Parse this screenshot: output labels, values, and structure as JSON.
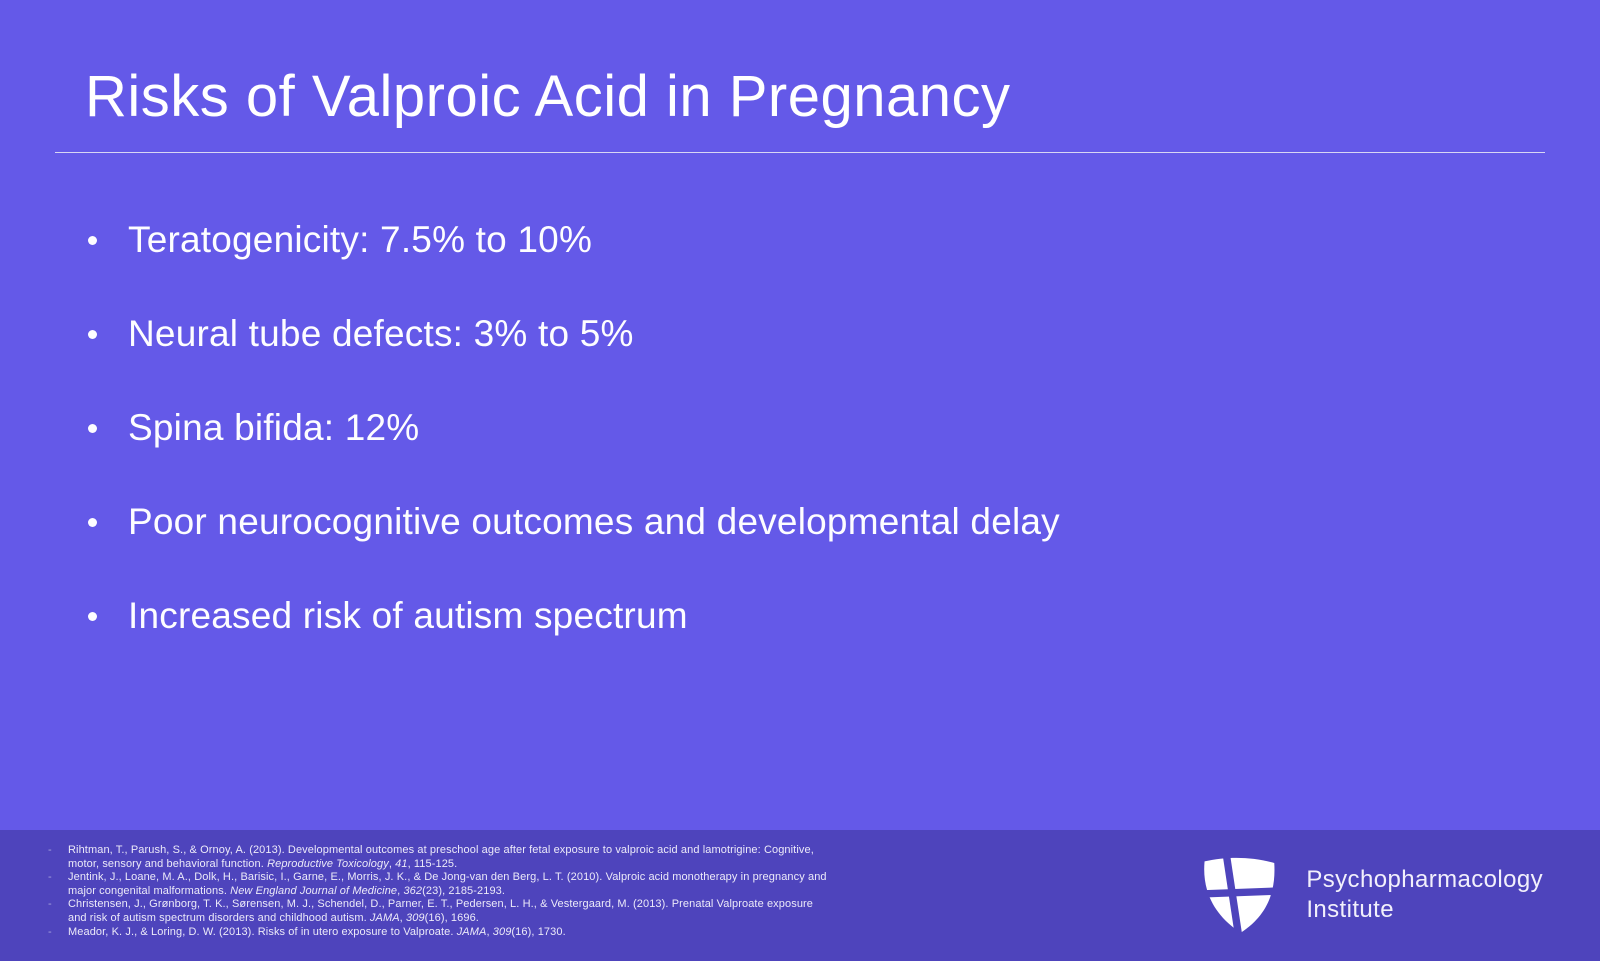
{
  "slide": {
    "title": "Risks of Valproic Acid in Pregnancy",
    "bullets": [
      "Teratogenicity: 7.5% to 10%",
      "Neural tube defects: 3% to 5%",
      "Spina bifida: 12%",
      "Poor neurocognitive outcomes and developmental delay",
      "Increased risk of autism spectrum"
    ]
  },
  "footer": {
    "reference_marker": "-",
    "references": [
      {
        "segments": [
          {
            "text": "Rihtman, T., Parush, S., & Ornoy, A. (2013). Developmental outcomes at preschool age after fetal exposure to valproic acid and lamotrigine: Cognitive, motor, sensory and behavioral function. ",
            "italic": false
          },
          {
            "text": "Reproductive Toxicology",
            "italic": true
          },
          {
            "text": ", ",
            "italic": false
          },
          {
            "text": "41",
            "italic": true
          },
          {
            "text": ", 115-125.",
            "italic": false
          }
        ]
      },
      {
        "segments": [
          {
            "text": "Jentink, J., Loane, M. A., Dolk, H., Barisic, I., Garne, E., Morris, J. K., & De Jong-van den Berg, L. T. (2010). Valproic acid monotherapy in pregnancy and major congenital malformations. ",
            "italic": false
          },
          {
            "text": "New England Journal of Medicine",
            "italic": true
          },
          {
            "text": ", ",
            "italic": false
          },
          {
            "text": "362",
            "italic": true
          },
          {
            "text": "(23), 2185-2193.",
            "italic": false
          }
        ]
      },
      {
        "segments": [
          {
            "text": "Christensen, J., Grønborg, T. K., Sørensen, M. J., Schendel, D., Parner, E. T., Pedersen, L. H., & Vestergaard, M. (2013). Prenatal Valproate exposure and risk of autism spectrum disorders and childhood autism. ",
            "italic": false
          },
          {
            "text": "JAMA",
            "italic": true
          },
          {
            "text": ", ",
            "italic": false
          },
          {
            "text": "309",
            "italic": true
          },
          {
            "text": "(16), 1696.",
            "italic": false
          }
        ]
      },
      {
        "segments": [
          {
            "text": "Meador, K. J., & Loring, D. W. (2013). Risks of in utero exposure to Valproate. ",
            "italic": false
          },
          {
            "text": "JAMA",
            "italic": true
          },
          {
            "text": ", ",
            "italic": false
          },
          {
            "text": "309",
            "italic": true
          },
          {
            "text": "(16), 1730.",
            "italic": false
          }
        ]
      }
    ],
    "logo": {
      "line1": "Psychopharmacology",
      "line2": "Institute"
    }
  },
  "colors": {
    "background": "#6459E8",
    "footer_background": "#4E44BC",
    "text": "#FFFFFF",
    "reference_text": "#ECEAF9"
  }
}
